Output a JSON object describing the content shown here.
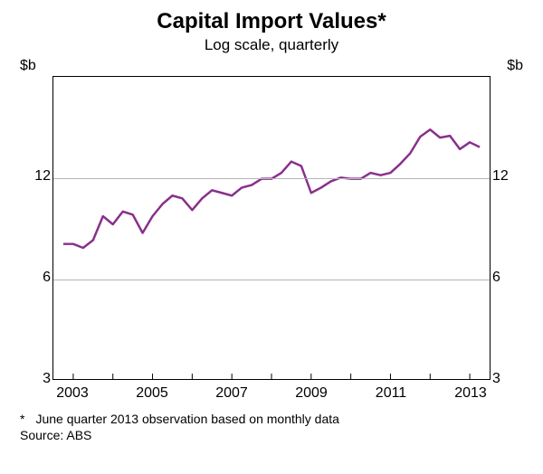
{
  "chart": {
    "type": "line",
    "title": "Capital Import Values*",
    "title_fontsize": 24,
    "subtitle": "Log scale, quarterly",
    "subtitle_fontsize": 17,
    "y_unit_label": "$b",
    "scale": "log",
    "yticks": [
      3,
      6,
      12
    ],
    "ylim_log": [
      3,
      24
    ],
    "xlim": [
      2002.5,
      2013.5
    ],
    "xticks": [
      2003,
      2005,
      2007,
      2009,
      2011,
      2013
    ],
    "line_color": "#8a2f8c",
    "line_width": 2.5,
    "grid_color": "#b5b5b5",
    "axis_color": "#000000",
    "background_color": "#ffffff",
    "label_fontsize": 16,
    "series": {
      "x": [
        2002.75,
        2003.0,
        2003.25,
        2003.5,
        2003.75,
        2004.0,
        2004.25,
        2004.5,
        2004.75,
        2005.0,
        2005.25,
        2005.5,
        2005.75,
        2006.0,
        2006.25,
        2006.5,
        2006.75,
        2007.0,
        2007.25,
        2007.5,
        2007.75,
        2008.0,
        2008.25,
        2008.5,
        2008.75,
        2009.0,
        2009.25,
        2009.5,
        2009.75,
        2010.0,
        2010.25,
        2010.5,
        2010.75,
        2011.0,
        2011.25,
        2011.5,
        2011.75,
        2012.0,
        2012.25,
        2012.5,
        2012.75,
        2013.0,
        2013.25
      ],
      "y": [
        7.6,
        7.6,
        7.4,
        7.8,
        9.2,
        8.7,
        9.5,
        9.3,
        8.2,
        9.2,
        10.0,
        10.6,
        10.4,
        9.6,
        10.4,
        11.0,
        10.8,
        10.6,
        11.2,
        11.4,
        11.9,
        11.9,
        12.4,
        13.4,
        13.0,
        10.8,
        11.2,
        11.7,
        12.0,
        11.9,
        11.9,
        12.4,
        12.2,
        12.4,
        13.2,
        14.2,
        15.9,
        16.7,
        15.8,
        16.0,
        14.6,
        15.3,
        14.8
      ]
    }
  },
  "footnote": {
    "marker": "*",
    "text": "June quarter 2013 observation based on monthly data",
    "source_label": "Source:",
    "source_value": "ABS"
  }
}
